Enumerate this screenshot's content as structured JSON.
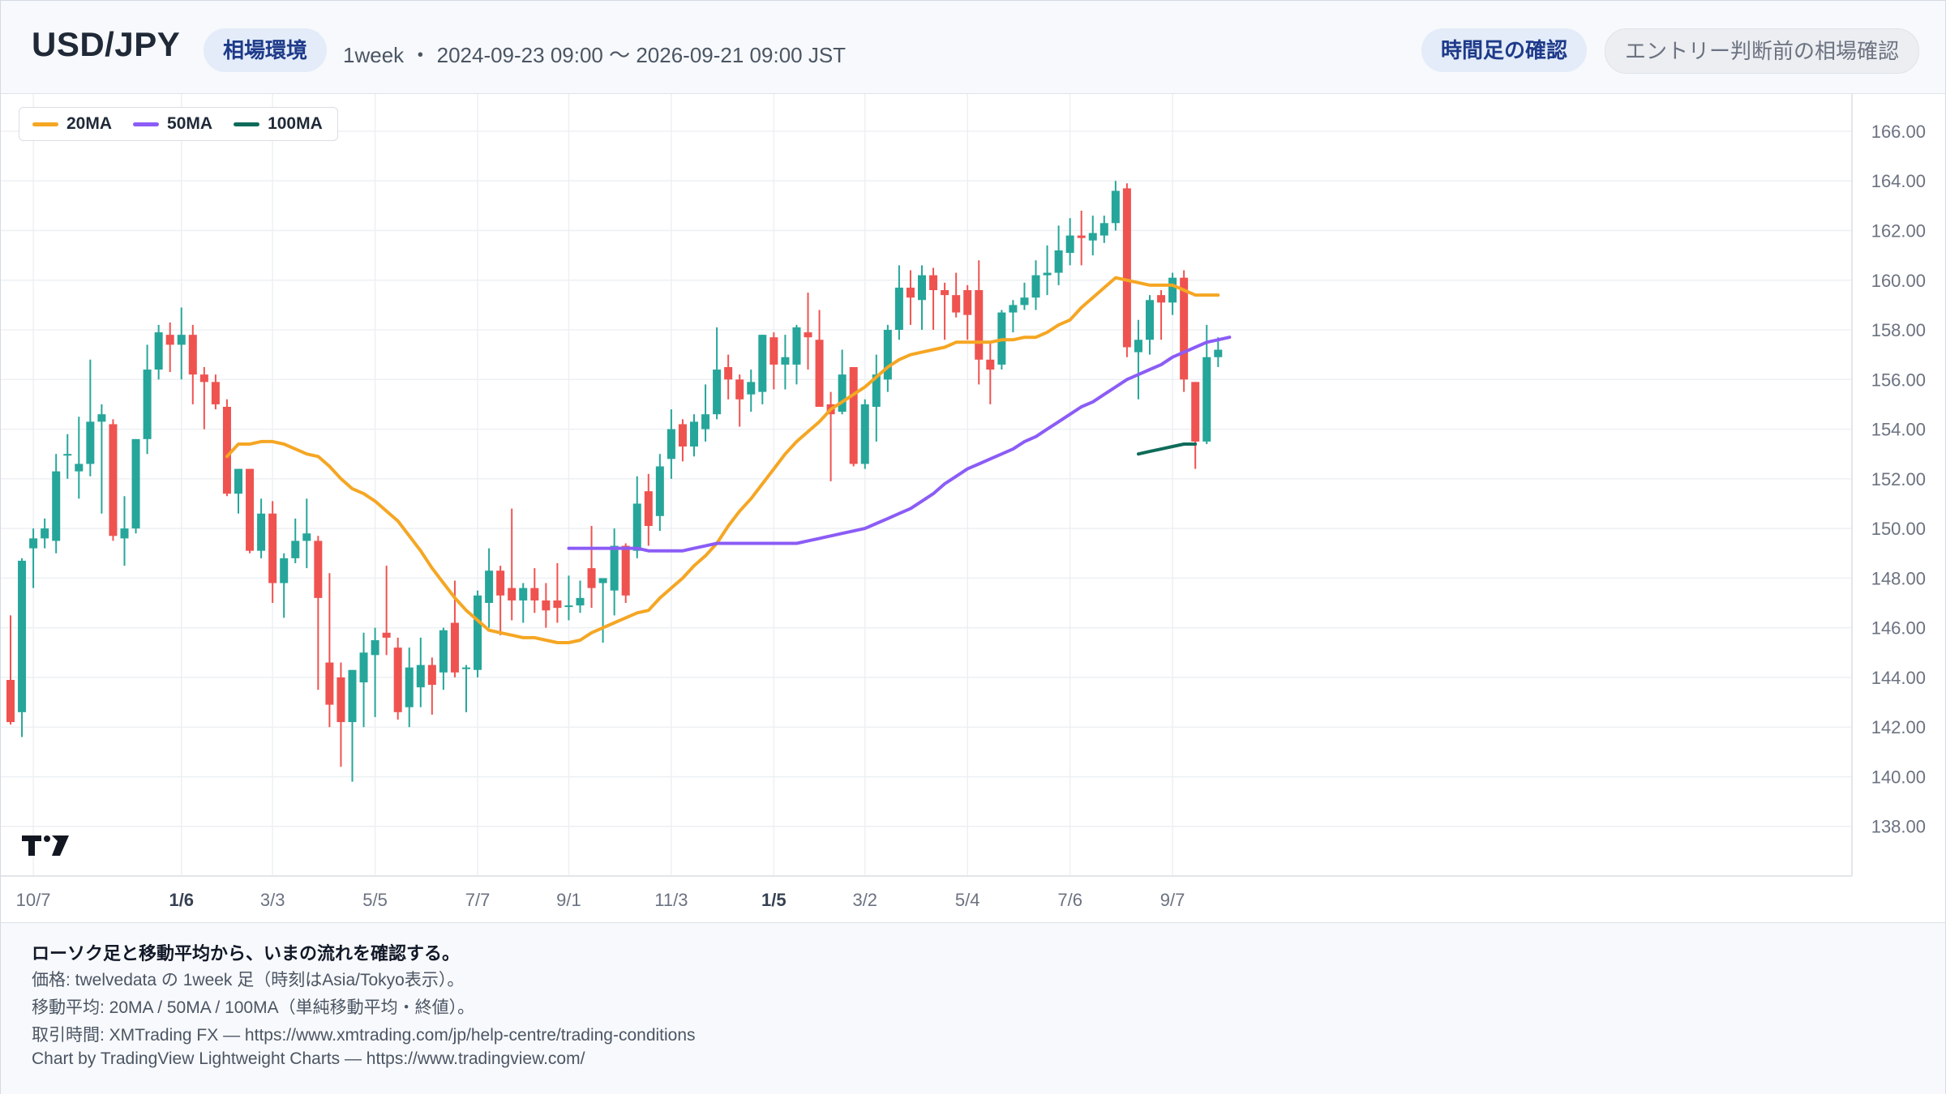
{
  "header": {
    "title": "USD/JPY",
    "badge": "相場環境",
    "period": "1week ・ 2024-09-23 09:00 〜 2026-09-21 09:00 JST",
    "button_timeframe": "時間足の確認",
    "button_entry": "エントリー判断前の相場確認"
  },
  "colors": {
    "up": "#26a69a",
    "down": "#ef5350",
    "ma20": "#f5a623",
    "ma50": "#8b5cf6",
    "ma100": "#0f6b5a",
    "grid": "#edf0f3",
    "axis_text": "#6b7280"
  },
  "chart_data": {
    "type": "candlestick",
    "interval": "1week",
    "ylim": [
      136.0,
      167.5
    ],
    "y_ticks": [
      "166.00",
      "164.00",
      "162.00",
      "160.00",
      "158.00",
      "156.00",
      "154.00",
      "152.00",
      "150.00",
      "148.00",
      "146.00",
      "144.00",
      "142.00",
      "140.00",
      "138.00"
    ],
    "x_ticks": [
      {
        "label": "10/7",
        "index": 2,
        "bold": false
      },
      {
        "label": "1/6",
        "index": 15,
        "bold": true
      },
      {
        "label": "3/3",
        "index": 23,
        "bold": false
      },
      {
        "label": "5/5",
        "index": 32,
        "bold": false
      },
      {
        "label": "7/7",
        "index": 41,
        "bold": false
      },
      {
        "label": "9/1",
        "index": 49,
        "bold": false
      },
      {
        "label": "11/3",
        "index": 58,
        "bold": false
      },
      {
        "label": "1/5",
        "index": 67,
        "bold": true
      },
      {
        "label": "3/2",
        "index": 75,
        "bold": false
      },
      {
        "label": "5/4",
        "index": 84,
        "bold": false
      },
      {
        "label": "7/6",
        "index": 93,
        "bold": false
      },
      {
        "label": "9/7",
        "index": 102,
        "bold": false
      }
    ],
    "legend": [
      "20MA",
      "50MA",
      "100MA"
    ],
    "candles": [
      {
        "o": 143.9,
        "h": 146.5,
        "l": 142.1,
        "c": 142.2
      },
      {
        "o": 142.6,
        "h": 148.8,
        "l": 141.6,
        "c": 148.7
      },
      {
        "o": 149.2,
        "h": 150.0,
        "l": 147.6,
        "c": 149.6
      },
      {
        "o": 149.6,
        "h": 150.4,
        "l": 149.2,
        "c": 150.0
      },
      {
        "o": 149.5,
        "h": 153.0,
        "l": 149.0,
        "c": 152.3
      },
      {
        "o": 153.0,
        "h": 153.8,
        "l": 152.0,
        "c": 153.0
      },
      {
        "o": 152.3,
        "h": 154.5,
        "l": 151.2,
        "c": 152.6
      },
      {
        "o": 152.6,
        "h": 156.8,
        "l": 152.1,
        "c": 154.3
      },
      {
        "o": 154.3,
        "h": 155.0,
        "l": 150.6,
        "c": 154.6
      },
      {
        "o": 154.2,
        "h": 154.4,
        "l": 149.5,
        "c": 149.7
      },
      {
        "o": 149.6,
        "h": 151.3,
        "l": 148.5,
        "c": 150.0
      },
      {
        "o": 150.0,
        "h": 153.6,
        "l": 149.8,
        "c": 153.6
      },
      {
        "o": 153.6,
        "h": 157.4,
        "l": 153.0,
        "c": 156.4
      },
      {
        "o": 156.4,
        "h": 158.2,
        "l": 156.0,
        "c": 157.9
      },
      {
        "o": 157.8,
        "h": 158.3,
        "l": 156.3,
        "c": 157.4
      },
      {
        "o": 157.4,
        "h": 158.9,
        "l": 156.0,
        "c": 157.8
      },
      {
        "o": 157.8,
        "h": 158.2,
        "l": 155.0,
        "c": 156.2
      },
      {
        "o": 156.2,
        "h": 156.5,
        "l": 154.0,
        "c": 155.9
      },
      {
        "o": 155.9,
        "h": 156.2,
        "l": 154.8,
        "c": 155.0
      },
      {
        "o": 154.9,
        "h": 155.2,
        "l": 151.3,
        "c": 151.4
      },
      {
        "o": 151.4,
        "h": 152.4,
        "l": 150.6,
        "c": 152.4
      },
      {
        "o": 152.4,
        "h": 152.4,
        "l": 149.0,
        "c": 149.1
      },
      {
        "o": 149.1,
        "h": 151.2,
        "l": 148.8,
        "c": 150.6
      },
      {
        "o": 150.6,
        "h": 151.1,
        "l": 147.0,
        "c": 147.8
      },
      {
        "o": 147.8,
        "h": 149.0,
        "l": 146.4,
        "c": 148.8
      },
      {
        "o": 148.8,
        "h": 150.4,
        "l": 148.6,
        "c": 149.5
      },
      {
        "o": 149.5,
        "h": 151.2,
        "l": 148.4,
        "c": 149.8
      },
      {
        "o": 149.5,
        "h": 149.7,
        "l": 143.5,
        "c": 147.2
      },
      {
        "o": 144.6,
        "h": 148.2,
        "l": 142.0,
        "c": 142.9
      },
      {
        "o": 144.0,
        "h": 144.6,
        "l": 140.4,
        "c": 142.2
      },
      {
        "o": 142.2,
        "h": 144.3,
        "l": 139.8,
        "c": 144.3
      },
      {
        "o": 143.8,
        "h": 145.8,
        "l": 142.0,
        "c": 145.0
      },
      {
        "o": 144.9,
        "h": 146.0,
        "l": 142.4,
        "c": 145.5
      },
      {
        "o": 145.8,
        "h": 148.5,
        "l": 144.9,
        "c": 145.6
      },
      {
        "o": 145.2,
        "h": 145.6,
        "l": 142.3,
        "c": 142.6
      },
      {
        "o": 142.8,
        "h": 145.2,
        "l": 142.0,
        "c": 144.4
      },
      {
        "o": 143.6,
        "h": 145.6,
        "l": 142.8,
        "c": 144.5
      },
      {
        "o": 144.5,
        "h": 144.8,
        "l": 142.5,
        "c": 143.7
      },
      {
        "o": 144.2,
        "h": 146.0,
        "l": 143.5,
        "c": 145.9
      },
      {
        "o": 146.2,
        "h": 147.9,
        "l": 144.0,
        "c": 144.2
      },
      {
        "o": 144.4,
        "h": 144.5,
        "l": 142.6,
        "c": 144.4
      },
      {
        "o": 144.3,
        "h": 147.5,
        "l": 144.0,
        "c": 147.3
      },
      {
        "o": 147.0,
        "h": 149.2,
        "l": 146.0,
        "c": 148.3
      },
      {
        "o": 148.3,
        "h": 148.5,
        "l": 145.7,
        "c": 147.3
      },
      {
        "o": 147.6,
        "h": 150.8,
        "l": 146.3,
        "c": 147.1
      },
      {
        "o": 147.1,
        "h": 147.8,
        "l": 146.2,
        "c": 147.6
      },
      {
        "o": 147.6,
        "h": 148.4,
        "l": 146.6,
        "c": 147.1
      },
      {
        "o": 147.1,
        "h": 147.8,
        "l": 146.0,
        "c": 146.7
      },
      {
        "o": 147.1,
        "h": 148.6,
        "l": 146.2,
        "c": 146.8
      },
      {
        "o": 146.9,
        "h": 148.1,
        "l": 146.3,
        "c": 146.9
      },
      {
        "o": 146.9,
        "h": 147.9,
        "l": 146.6,
        "c": 147.2
      },
      {
        "o": 148.4,
        "h": 150.1,
        "l": 146.8,
        "c": 147.6
      },
      {
        "o": 147.8,
        "h": 147.9,
        "l": 145.4,
        "c": 148.0
      },
      {
        "o": 147.5,
        "h": 150.0,
        "l": 146.5,
        "c": 149.3
      },
      {
        "o": 149.3,
        "h": 149.4,
        "l": 147.0,
        "c": 147.3
      },
      {
        "o": 149.1,
        "h": 152.1,
        "l": 148.8,
        "c": 151.0
      },
      {
        "o": 151.5,
        "h": 152.2,
        "l": 149.3,
        "c": 150.1
      },
      {
        "o": 150.5,
        "h": 153.0,
        "l": 149.9,
        "c": 152.5
      },
      {
        "o": 152.8,
        "h": 154.8,
        "l": 152.0,
        "c": 154.0
      },
      {
        "o": 154.2,
        "h": 154.4,
        "l": 152.7,
        "c": 153.3
      },
      {
        "o": 153.3,
        "h": 154.6,
        "l": 152.9,
        "c": 154.3
      },
      {
        "o": 154.0,
        "h": 155.8,
        "l": 153.5,
        "c": 154.6
      },
      {
        "o": 154.6,
        "h": 158.1,
        "l": 154.4,
        "c": 156.4
      },
      {
        "o": 156.5,
        "h": 157.0,
        "l": 155.2,
        "c": 156.0
      },
      {
        "o": 156.0,
        "h": 156.2,
        "l": 154.1,
        "c": 155.2
      },
      {
        "o": 155.4,
        "h": 156.4,
        "l": 154.7,
        "c": 155.9
      },
      {
        "o": 155.5,
        "h": 157.8,
        "l": 155.0,
        "c": 157.8
      },
      {
        "o": 157.7,
        "h": 157.9,
        "l": 155.6,
        "c": 156.6
      },
      {
        "o": 156.6,
        "h": 157.8,
        "l": 155.6,
        "c": 156.9
      },
      {
        "o": 156.6,
        "h": 158.2,
        "l": 155.8,
        "c": 158.1
      },
      {
        "o": 157.9,
        "h": 159.5,
        "l": 156.4,
        "c": 157.7
      },
      {
        "o": 157.6,
        "h": 158.8,
        "l": 154.9,
        "c": 154.9
      },
      {
        "o": 155.0,
        "h": 155.5,
        "l": 151.9,
        "c": 154.6
      },
      {
        "o": 154.7,
        "h": 157.2,
        "l": 154.6,
        "c": 156.2
      },
      {
        "o": 156.5,
        "h": 156.5,
        "l": 152.5,
        "c": 152.6
      },
      {
        "o": 152.6,
        "h": 155.2,
        "l": 152.4,
        "c": 155.0
      },
      {
        "o": 154.9,
        "h": 157.0,
        "l": 153.5,
        "c": 156.2
      },
      {
        "o": 156.0,
        "h": 158.2,
        "l": 155.5,
        "c": 158.0
      },
      {
        "o": 158.0,
        "h": 160.6,
        "l": 157.6,
        "c": 159.7
      },
      {
        "o": 159.7,
        "h": 160.4,
        "l": 158.2,
        "c": 159.3
      },
      {
        "o": 159.2,
        "h": 160.6,
        "l": 158.0,
        "c": 160.2
      },
      {
        "o": 160.2,
        "h": 160.5,
        "l": 158.0,
        "c": 159.6
      },
      {
        "o": 159.6,
        "h": 159.9,
        "l": 157.6,
        "c": 159.4
      },
      {
        "o": 159.4,
        "h": 160.3,
        "l": 158.5,
        "c": 158.7
      },
      {
        "o": 159.6,
        "h": 159.8,
        "l": 157.6,
        "c": 158.6
      },
      {
        "o": 159.6,
        "h": 160.8,
        "l": 155.8,
        "c": 156.8
      },
      {
        "o": 156.8,
        "h": 157.5,
        "l": 155.0,
        "c": 156.4
      },
      {
        "o": 156.6,
        "h": 158.8,
        "l": 156.4,
        "c": 158.7
      },
      {
        "o": 158.7,
        "h": 159.2,
        "l": 157.9,
        "c": 159.0
      },
      {
        "o": 159.0,
        "h": 159.9,
        "l": 158.8,
        "c": 159.3
      },
      {
        "o": 159.3,
        "h": 160.8,
        "l": 158.8,
        "c": 160.2
      },
      {
        "o": 160.2,
        "h": 161.4,
        "l": 159.4,
        "c": 160.3
      },
      {
        "o": 160.3,
        "h": 162.2,
        "l": 159.8,
        "c": 161.2
      },
      {
        "o": 161.1,
        "h": 162.5,
        "l": 160.6,
        "c": 161.8
      },
      {
        "o": 161.8,
        "h": 162.8,
        "l": 160.6,
        "c": 161.7
      },
      {
        "o": 161.6,
        "h": 162.6,
        "l": 161.0,
        "c": 161.9
      },
      {
        "o": 161.8,
        "h": 162.6,
        "l": 161.5,
        "c": 162.3
      },
      {
        "o": 162.3,
        "h": 164.0,
        "l": 162.0,
        "c": 163.6
      },
      {
        "o": 163.7,
        "h": 163.9,
        "l": 156.9,
        "c": 157.3
      },
      {
        "o": 157.1,
        "h": 158.4,
        "l": 155.2,
        "c": 157.6
      },
      {
        "o": 157.6,
        "h": 159.4,
        "l": 157.0,
        "c": 159.2
      },
      {
        "o": 159.4,
        "h": 159.6,
        "l": 157.6,
        "c": 159.1
      },
      {
        "o": 159.1,
        "h": 160.3,
        "l": 158.6,
        "c": 160.1
      },
      {
        "o": 160.1,
        "h": 160.4,
        "l": 155.5,
        "c": 156.0
      },
      {
        "o": 155.9,
        "h": 155.9,
        "l": 152.4,
        "c": 153.5
      },
      {
        "o": 153.5,
        "h": 158.2,
        "l": 153.4,
        "c": 156.9
      },
      {
        "o": 156.9,
        "h": 157.7,
        "l": 156.5,
        "c": 157.2
      }
    ],
    "ma20": {
      "start": 19,
      "values": [
        152.9,
        153.4,
        153.4,
        153.5,
        153.5,
        153.4,
        153.2,
        153.0,
        152.9,
        152.5,
        152.0,
        151.6,
        151.4,
        151.1,
        150.7,
        150.3,
        149.7,
        149.1,
        148.4,
        147.8,
        147.2,
        146.7,
        146.3,
        145.9,
        145.8,
        145.7,
        145.6,
        145.6,
        145.5,
        145.4,
        145.4,
        145.5,
        145.8,
        146.0,
        146.2,
        146.4,
        146.6,
        146.7,
        147.2,
        147.6,
        148.0,
        148.5,
        148.9,
        149.4,
        150.1,
        150.7,
        151.2,
        151.8,
        152.4,
        153.0,
        153.5,
        153.9,
        154.3,
        154.8,
        155.1,
        155.4,
        155.7,
        156.1,
        156.5,
        156.8,
        157.0,
        157.1,
        157.2,
        157.3,
        157.5,
        157.5,
        157.5,
        157.5,
        157.6,
        157.6,
        157.7,
        157.7,
        157.9,
        158.2,
        158.4,
        158.9,
        159.3,
        159.7,
        160.1,
        160.0,
        159.9,
        159.8,
        159.8,
        159.8,
        159.6,
        159.4,
        159.4,
        159.4
      ]
    },
    "ma50": {
      "start": 49,
      "values": [
        149.2,
        149.2,
        149.2,
        149.2,
        149.2,
        149.2,
        149.2,
        149.1,
        149.1,
        149.1,
        149.1,
        149.2,
        149.3,
        149.4,
        149.4,
        149.4,
        149.4,
        149.4,
        149.4,
        149.4,
        149.4,
        149.5,
        149.6,
        149.7,
        149.8,
        149.9,
        150.0,
        150.2,
        150.4,
        150.6,
        150.8,
        151.1,
        151.4,
        151.8,
        152.1,
        152.4,
        152.6,
        152.8,
        153.0,
        153.2,
        153.5,
        153.7,
        154.0,
        154.3,
        154.6,
        154.9,
        155.1,
        155.4,
        155.7,
        156.0,
        156.2,
        156.4,
        156.6,
        156.9,
        157.1,
        157.3,
        157.5,
        157.6,
        157.7
      ]
    },
    "ma100": {
      "start": 99,
      "values": [
        153.0,
        153.1,
        153.2,
        153.3,
        153.4,
        153.4
      ]
    }
  },
  "footer": {
    "lead": "ローソク足と移動平均から、いまの流れを確認する。",
    "line1": "価格: twelvedata の 1week 足（時刻はAsia/Tokyo表示）。",
    "line2": "移動平均: 20MA / 50MA / 100MA（単純移動平均・終値）。",
    "line3": "取引時間: XMTrading FX — https://www.xmtrading.com/jp/help-centre/trading-conditions",
    "line4": "Chart by TradingView Lightweight Charts — https://www.tradingview.com/"
  }
}
